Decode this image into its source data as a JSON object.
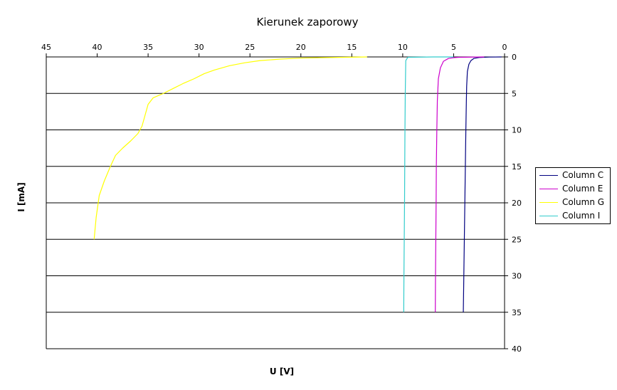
{
  "chart_data": {
    "type": "line",
    "title": "Kierunek zaporowy",
    "xlabel": "U [V]",
    "ylabel": "I [mA]",
    "xlim": [
      45,
      0
    ],
    "ylim": [
      0,
      40
    ],
    "x_axis_position": "top",
    "x_reversed": true,
    "y_axis_position": "right",
    "y_inverted": true,
    "x_ticks": [
      "45",
      "40",
      "35",
      "30",
      "25",
      "20",
      "15",
      "10",
      "5",
      "0"
    ],
    "y_ticks": [
      "0",
      "5",
      "10",
      "15",
      "20",
      "25",
      "30",
      "35",
      "40"
    ],
    "grid": "horizontal",
    "legend_position": "right",
    "series": [
      {
        "name": "Column C",
        "color": "#000080",
        "points": [
          [
            0.3,
            0
          ],
          [
            1.5,
            0.02
          ],
          [
            2.5,
            0.08
          ],
          [
            3.0,
            0.2
          ],
          [
            3.3,
            0.5
          ],
          [
            3.5,
            1.0
          ],
          [
            3.65,
            2.0
          ],
          [
            3.72,
            4.0
          ],
          [
            3.75,
            6.0
          ],
          [
            3.8,
            10
          ],
          [
            3.85,
            15
          ],
          [
            3.9,
            20
          ],
          [
            3.95,
            25
          ],
          [
            4.0,
            30
          ],
          [
            4.05,
            35
          ]
        ]
      },
      {
        "name": "Column E",
        "color": "#cc00cc",
        "points": [
          [
            2.0,
            0
          ],
          [
            4.5,
            0.05
          ],
          [
            5.0,
            0.1
          ],
          [
            5.5,
            0.2
          ],
          [
            6.0,
            0.6
          ],
          [
            6.3,
            1.5
          ],
          [
            6.5,
            3.0
          ],
          [
            6.6,
            6.0
          ],
          [
            6.65,
            10
          ],
          [
            6.7,
            15
          ],
          [
            6.72,
            20
          ],
          [
            6.75,
            25
          ],
          [
            6.78,
            30
          ],
          [
            6.8,
            35
          ]
        ]
      },
      {
        "name": "Column G",
        "color": "#ffff00",
        "points": [
          [
            13.5,
            0
          ],
          [
            18,
            0.1
          ],
          [
            20,
            0.15
          ],
          [
            22,
            0.3
          ],
          [
            24,
            0.5
          ],
          [
            25.5,
            0.8
          ],
          [
            27,
            1.2
          ],
          [
            28.5,
            1.8
          ],
          [
            29.5,
            2.3
          ],
          [
            30.5,
            3.0
          ],
          [
            31.5,
            3.6
          ],
          [
            32.5,
            4.3
          ],
          [
            33.5,
            5.0
          ],
          [
            34.5,
            5.6
          ],
          [
            35,
            6.5
          ],
          [
            35.3,
            8
          ],
          [
            35.6,
            9.5
          ],
          [
            36,
            10.5
          ],
          [
            36.7,
            11.5
          ],
          [
            37.5,
            12.5
          ],
          [
            38.2,
            13.5
          ],
          [
            38.7,
            15
          ],
          [
            39.3,
            17
          ],
          [
            39.8,
            19
          ],
          [
            40.1,
            22
          ],
          [
            40.3,
            25
          ]
        ]
      },
      {
        "name": "Column I",
        "color": "#33cccc",
        "points": [
          [
            5.0,
            0
          ],
          [
            7.0,
            0
          ],
          [
            9.5,
            0.05
          ],
          [
            9.7,
            0.5
          ],
          [
            9.75,
            5
          ],
          [
            9.78,
            10
          ],
          [
            9.8,
            15
          ],
          [
            9.82,
            20
          ],
          [
            9.85,
            25
          ],
          [
            9.88,
            30
          ],
          [
            9.9,
            35
          ]
        ]
      }
    ]
  }
}
